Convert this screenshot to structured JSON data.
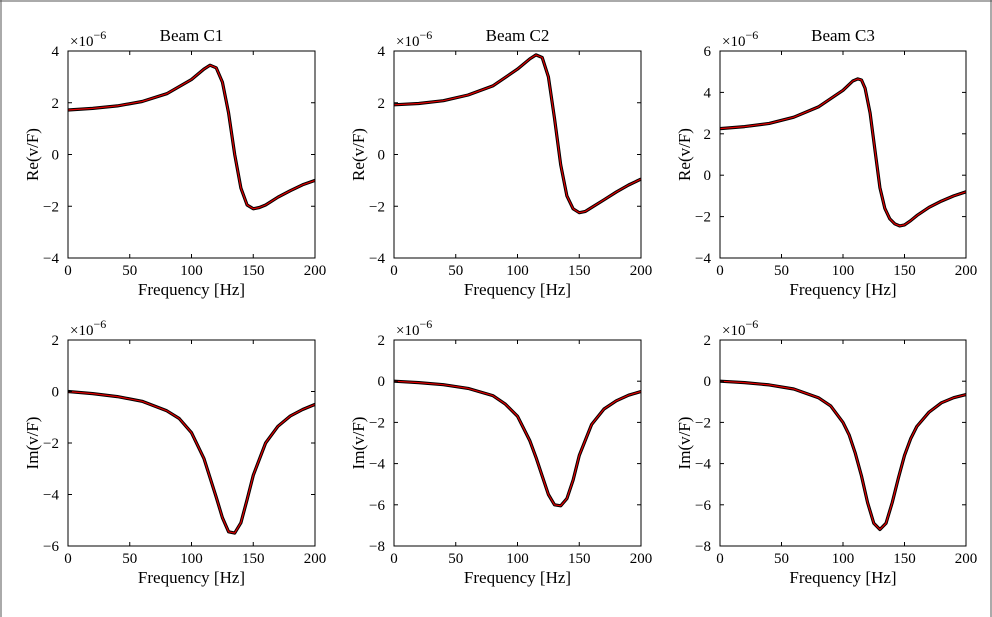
{
  "figure": {
    "border_color": "#555555",
    "measured_color": "#000000",
    "fitted_color": "#e00000"
  },
  "chart_data": [
    {
      "type": "line",
      "title": "Beam C1",
      "xlabel": "Frequency [Hz]",
      "ylabel": "Re(v/F)",
      "y_exponent": "−6",
      "xlim": [
        0,
        200
      ],
      "ylim": [
        -4,
        4
      ],
      "xticks": [
        0,
        50,
        100,
        150,
        200
      ],
      "yticks": [
        -4,
        -2,
        0,
        2,
        4
      ],
      "series": [
        {
          "x": [
            0,
            20,
            40,
            60,
            80,
            100,
            110,
            115,
            120,
            125,
            130,
            135,
            140,
            145,
            150,
            155,
            160,
            170,
            180,
            190,
            200
          ],
          "values": [
            1.72,
            1.78,
            1.88,
            2.05,
            2.35,
            2.9,
            3.3,
            3.45,
            3.35,
            2.8,
            1.6,
            0.0,
            -1.3,
            -1.95,
            -2.1,
            -2.05,
            -1.95,
            -1.65,
            -1.4,
            -1.17,
            -1.0
          ]
        }
      ]
    },
    {
      "type": "line",
      "title": "Beam C2",
      "xlabel": "Frequency [Hz]",
      "ylabel": "Re(v/F)",
      "y_exponent": "−6",
      "xlim": [
        0,
        200
      ],
      "ylim": [
        -4,
        4
      ],
      "xticks": [
        0,
        50,
        100,
        150,
        200
      ],
      "yticks": [
        -4,
        -2,
        0,
        2,
        4
      ],
      "series": [
        {
          "x": [
            0,
            20,
            40,
            60,
            80,
            100,
            110,
            115,
            120,
            125,
            130,
            135,
            140,
            145,
            150,
            155,
            160,
            170,
            180,
            190,
            200
          ],
          "values": [
            1.92,
            1.97,
            2.08,
            2.3,
            2.65,
            3.3,
            3.7,
            3.85,
            3.75,
            3.0,
            1.4,
            -0.4,
            -1.6,
            -2.1,
            -2.25,
            -2.2,
            -2.05,
            -1.75,
            -1.45,
            -1.18,
            -0.95
          ]
        }
      ]
    },
    {
      "type": "line",
      "title": "Beam C3",
      "xlabel": "Frequency [Hz]",
      "ylabel": "Re(v/F)",
      "y_exponent": "−6",
      "xlim": [
        0,
        200
      ],
      "ylim": [
        -4,
        6
      ],
      "xticks": [
        0,
        50,
        100,
        150,
        200
      ],
      "yticks": [
        -4,
        -2,
        0,
        2,
        4,
        6
      ],
      "series": [
        {
          "x": [
            0,
            20,
            40,
            60,
            80,
            100,
            108,
            112,
            115,
            118,
            122,
            126,
            130,
            134,
            138,
            142,
            146,
            150,
            155,
            160,
            170,
            180,
            190,
            200
          ],
          "values": [
            2.25,
            2.35,
            2.5,
            2.8,
            3.3,
            4.1,
            4.55,
            4.65,
            4.6,
            4.2,
            3.0,
            1.2,
            -0.6,
            -1.6,
            -2.1,
            -2.35,
            -2.45,
            -2.4,
            -2.2,
            -1.95,
            -1.55,
            -1.25,
            -1.0,
            -0.8
          ]
        }
      ]
    },
    {
      "type": "line",
      "title": "",
      "xlabel": "Frequency [Hz]",
      "ylabel": "Im(v/F)",
      "y_exponent": "−6",
      "xlim": [
        0,
        200
      ],
      "ylim": [
        -6,
        2
      ],
      "xticks": [
        0,
        50,
        100,
        150,
        200
      ],
      "yticks": [
        -6,
        -4,
        -2,
        0,
        2
      ],
      "series": [
        {
          "x": [
            0,
            20,
            40,
            60,
            80,
            90,
            100,
            110,
            120,
            125,
            130,
            135,
            140,
            145,
            150,
            160,
            170,
            180,
            190,
            200
          ],
          "values": [
            0.0,
            -0.08,
            -0.2,
            -0.38,
            -0.75,
            -1.05,
            -1.6,
            -2.6,
            -4.1,
            -4.9,
            -5.45,
            -5.5,
            -5.1,
            -4.2,
            -3.25,
            -2.0,
            -1.35,
            -0.95,
            -0.7,
            -0.5
          ]
        }
      ]
    },
    {
      "type": "line",
      "title": "",
      "xlabel": "Frequency [Hz]",
      "ylabel": "Im(v/F)",
      "y_exponent": "−6",
      "xlim": [
        0,
        200
      ],
      "ylim": [
        -8,
        2
      ],
      "xticks": [
        0,
        50,
        100,
        150,
        200
      ],
      "yticks": [
        -8,
        -6,
        -4,
        -2,
        0,
        2
      ],
      "series": [
        {
          "x": [
            0,
            20,
            40,
            60,
            80,
            90,
            100,
            110,
            115,
            120,
            125,
            130,
            135,
            140,
            145,
            150,
            160,
            170,
            180,
            190,
            200
          ],
          "values": [
            0.0,
            -0.07,
            -0.17,
            -0.35,
            -0.7,
            -1.1,
            -1.7,
            -2.9,
            -3.7,
            -4.6,
            -5.5,
            -6.0,
            -6.05,
            -5.7,
            -4.8,
            -3.6,
            -2.1,
            -1.35,
            -0.95,
            -0.68,
            -0.5
          ]
        }
      ]
    },
    {
      "type": "line",
      "title": "",
      "xlabel": "Frequency [Hz]",
      "ylabel": "Im(v/F)",
      "y_exponent": "−6",
      "xlim": [
        0,
        200
      ],
      "ylim": [
        -8,
        2
      ],
      "xticks": [
        0,
        50,
        100,
        150,
        200
      ],
      "yticks": [
        -8,
        -6,
        -4,
        -2,
        0,
        2
      ],
      "series": [
        {
          "x": [
            0,
            20,
            40,
            60,
            80,
            90,
            100,
            105,
            110,
            115,
            120,
            125,
            130,
            135,
            140,
            145,
            150,
            155,
            160,
            170,
            180,
            190,
            200
          ],
          "values": [
            0.0,
            -0.07,
            -0.18,
            -0.38,
            -0.8,
            -1.2,
            -2.0,
            -2.6,
            -3.5,
            -4.6,
            -5.9,
            -6.9,
            -7.2,
            -6.9,
            -5.9,
            -4.7,
            -3.6,
            -2.8,
            -2.2,
            -1.5,
            -1.05,
            -0.8,
            -0.65
          ]
        }
      ]
    }
  ]
}
